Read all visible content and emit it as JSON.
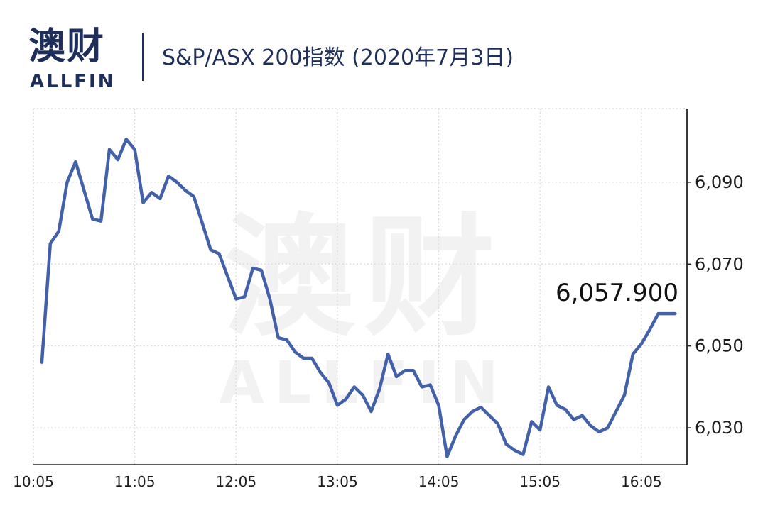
{
  "brand": {
    "name_cn": "澳财",
    "name_en": "ALLFIN"
  },
  "header": {
    "title": "S&P/ASX 200指数 (2020年7月3日)"
  },
  "watermark": {
    "cn": "澳财",
    "en": "ALLFIN"
  },
  "colors": {
    "line": "#4361a8",
    "brand": "#1f2f5c",
    "brand_accent": "#c2185b",
    "grid": "#d9d9d9"
  },
  "chart_data": {
    "type": "line",
    "title": "S&P/ASX 200指数 (2020年7月3日)",
    "xlabel": "",
    "ylabel": "",
    "x_ticks": [
      "10:05",
      "11:05",
      "12:05",
      "13:05",
      "14:05",
      "15:05",
      "16:05"
    ],
    "y_ticks": [
      "6,030",
      "6,050",
      "6,070",
      "6,090"
    ],
    "y_tick_values": [
      6030,
      6050,
      6070,
      6090
    ],
    "ylim": [
      6021,
      6108
    ],
    "y_axis_side": "right",
    "grid": true,
    "last_value_label": "6,057.900",
    "series": [
      {
        "points": [
          [
            "10:10",
            6046.0
          ],
          [
            "10:15",
            6075.0
          ],
          [
            "10:20",
            6078.0
          ],
          [
            "10:25",
            6090.0
          ],
          [
            "10:30",
            6095.0
          ],
          [
            "10:35",
            6088.0
          ],
          [
            "10:40",
            6081.0
          ],
          [
            "10:45",
            6080.5
          ],
          [
            "10:50",
            6098.0
          ],
          [
            "10:55",
            6095.5
          ],
          [
            "11:00",
            6100.5
          ],
          [
            "11:05",
            6098.0
          ],
          [
            "11:10",
            6085.0
          ],
          [
            "11:15",
            6087.5
          ],
          [
            "11:20",
            6086.0
          ],
          [
            "11:25",
            6091.5
          ],
          [
            "11:30",
            6090.0
          ],
          [
            "11:35",
            6088.0
          ],
          [
            "11:40",
            6086.5
          ],
          [
            "11:45",
            6080.0
          ],
          [
            "11:50",
            6073.5
          ],
          [
            "11:55",
            6072.5
          ],
          [
            "12:00",
            6067.0
          ],
          [
            "12:05",
            6061.5
          ],
          [
            "12:10",
            6062.0
          ],
          [
            "12:15",
            6069.0
          ],
          [
            "12:20",
            6068.5
          ],
          [
            "12:25",
            6061.5
          ],
          [
            "12:30",
            6052.0
          ],
          [
            "12:35",
            6051.5
          ],
          [
            "12:40",
            6048.5
          ],
          [
            "12:45",
            6047.0
          ],
          [
            "12:50",
            6047.0
          ],
          [
            "12:55",
            6043.5
          ],
          [
            "13:00",
            6041.0
          ],
          [
            "13:05",
            6035.5
          ],
          [
            "13:10",
            6037.0
          ],
          [
            "13:15",
            6040.0
          ],
          [
            "13:20",
            6038.0
          ],
          [
            "13:25",
            6034.0
          ],
          [
            "13:30",
            6039.5
          ],
          [
            "13:35",
            6048.0
          ],
          [
            "13:40",
            6042.5
          ],
          [
            "13:45",
            6044.0
          ],
          [
            "13:50",
            6044.0
          ],
          [
            "13:55",
            6040.0
          ],
          [
            "14:00",
            6040.5
          ],
          [
            "14:05",
            6035.5
          ],
          [
            "14:10",
            6023.0
          ],
          [
            "14:15",
            6028.0
          ],
          [
            "14:20",
            6032.0
          ],
          [
            "14:25",
            6034.0
          ],
          [
            "14:30",
            6035.0
          ],
          [
            "14:35",
            6033.0
          ],
          [
            "14:40",
            6031.0
          ],
          [
            "14:45",
            6026.0
          ],
          [
            "14:50",
            6024.5
          ],
          [
            "14:55",
            6023.5
          ],
          [
            "15:00",
            6031.5
          ],
          [
            "15:05",
            6029.5
          ],
          [
            "15:10",
            6040.0
          ],
          [
            "15:15",
            6035.5
          ],
          [
            "15:20",
            6034.5
          ],
          [
            "15:25",
            6032.0
          ],
          [
            "15:30",
            6033.0
          ],
          [
            "15:35",
            6030.5
          ],
          [
            "15:40",
            6029.0
          ],
          [
            "15:45",
            6030.0
          ],
          [
            "15:50",
            6034.0
          ],
          [
            "15:55",
            6038.0
          ],
          [
            "16:00",
            6048.0
          ],
          [
            "16:05",
            6050.5
          ],
          [
            "16:10",
            6054.0
          ],
          [
            "16:15",
            6057.9
          ],
          [
            "16:20",
            6057.9
          ],
          [
            "16:25",
            6057.9
          ]
        ]
      }
    ]
  }
}
